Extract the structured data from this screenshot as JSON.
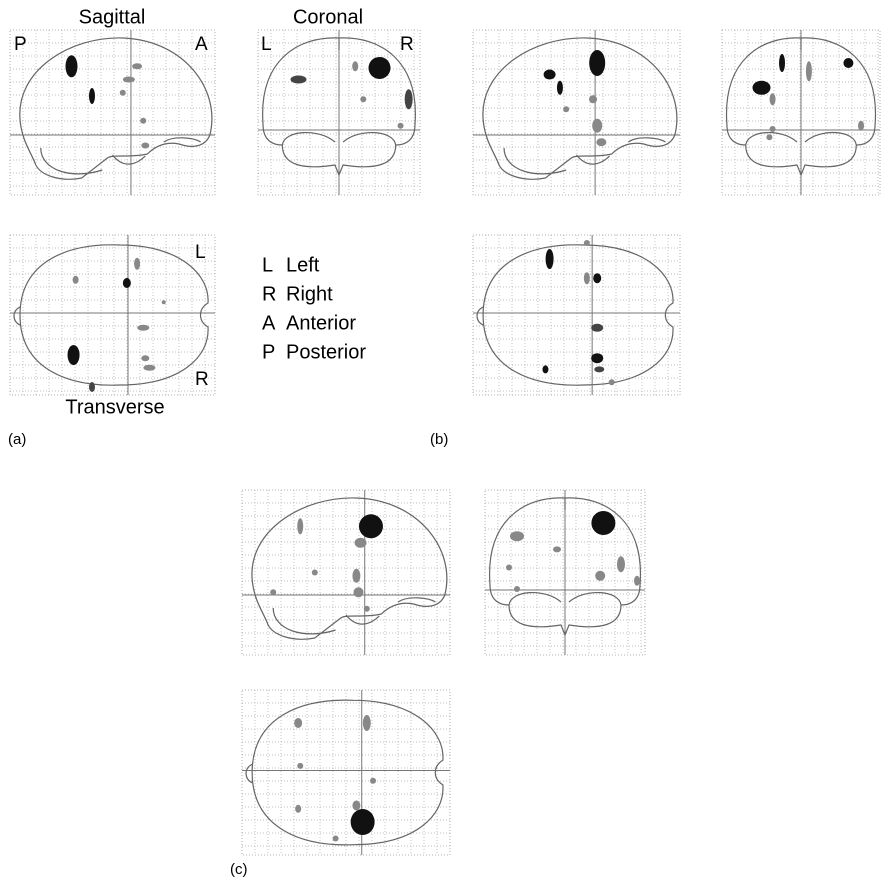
{
  "panels": [
    {
      "label": "(a)",
      "views": {
        "sagittal": "Sagittal",
        "coronal": "Coronal",
        "transverse": "Transverse"
      },
      "orientation": {
        "sagittal_left": "P",
        "sagittal_right": "A",
        "coronal_left": "L",
        "coronal_right": "R",
        "transverse_top": "L",
        "transverse_bottom": "R"
      }
    },
    {
      "label": "(b)"
    },
    {
      "label": "(c)"
    }
  ],
  "legend": [
    {
      "key": "L",
      "text": "Left"
    },
    {
      "key": "R",
      "text": "Right"
    },
    {
      "key": "A",
      "text": "Anterior"
    },
    {
      "key": "P",
      "text": "Posterior"
    }
  ]
}
